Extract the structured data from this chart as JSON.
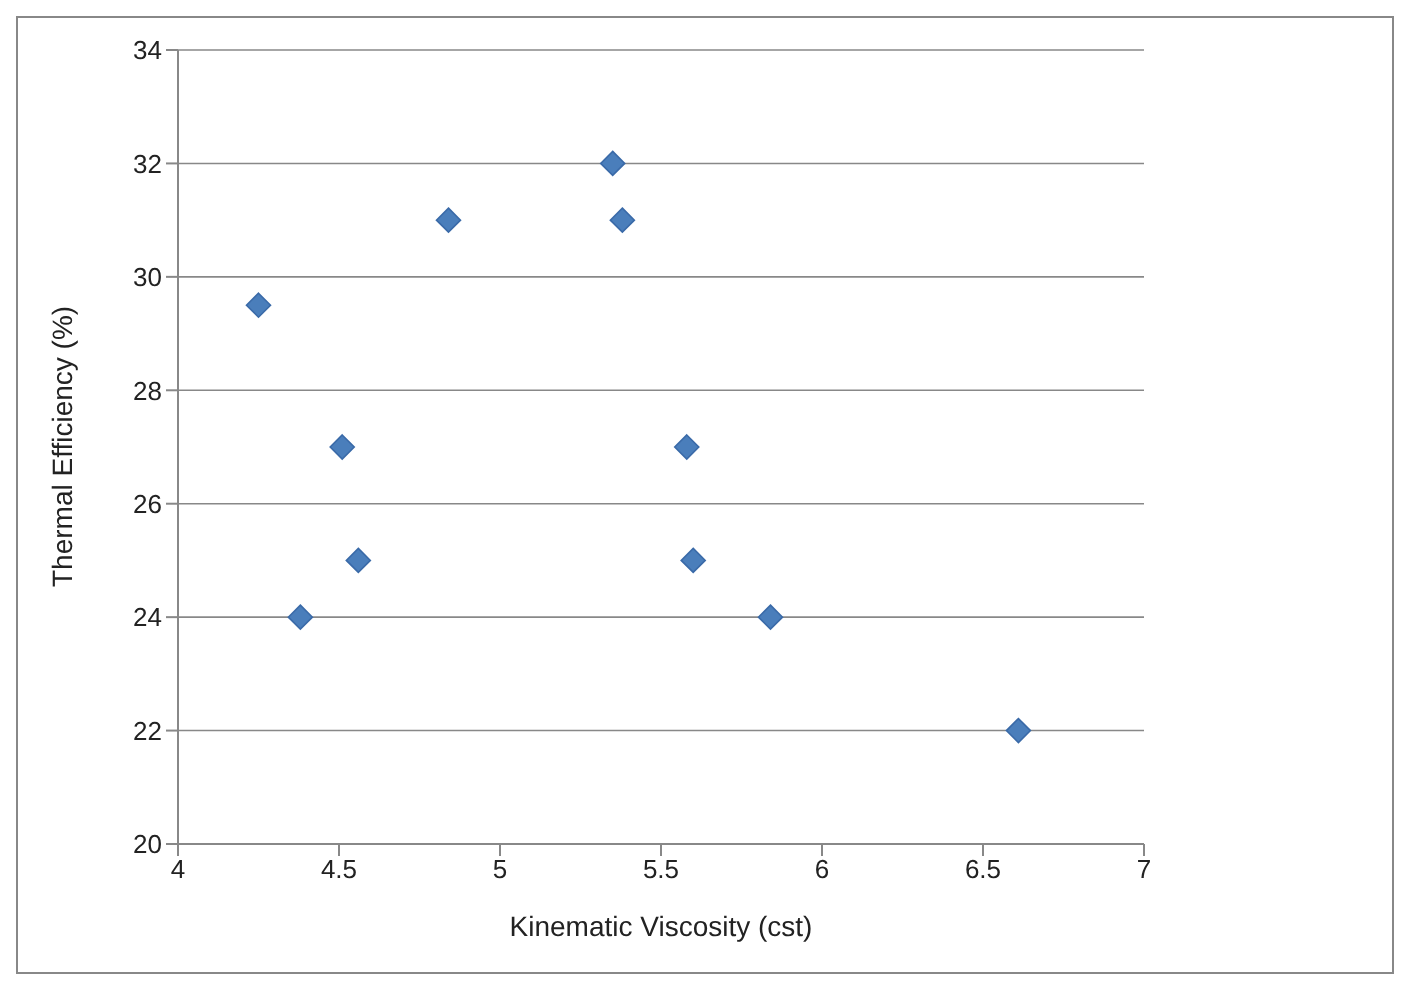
{
  "chart_data": {
    "type": "scatter",
    "xlabel": "Kinematic Viscosity (cst)",
    "ylabel": "Thermal Efficiency (%)",
    "x": [
      4.25,
      4.38,
      4.51,
      4.56,
      4.84,
      5.35,
      5.38,
      5.58,
      5.6,
      5.84,
      6.61
    ],
    "series": [
      {
        "color": "#4a7ebb",
        "values": [
          29.5,
          24,
          27,
          25,
          31,
          32,
          31,
          27,
          25,
          24,
          22
        ]
      }
    ],
    "xlim": [
      4,
      7
    ],
    "xticks": [
      4,
      4.5,
      5,
      5.5,
      6,
      6.5,
      7
    ],
    "ylim": [
      20,
      34
    ],
    "yticks": [
      20,
      22,
      24,
      26,
      28,
      30,
      32,
      34
    ],
    "grid": "y",
    "marker": "diamond",
    "legend": false
  }
}
